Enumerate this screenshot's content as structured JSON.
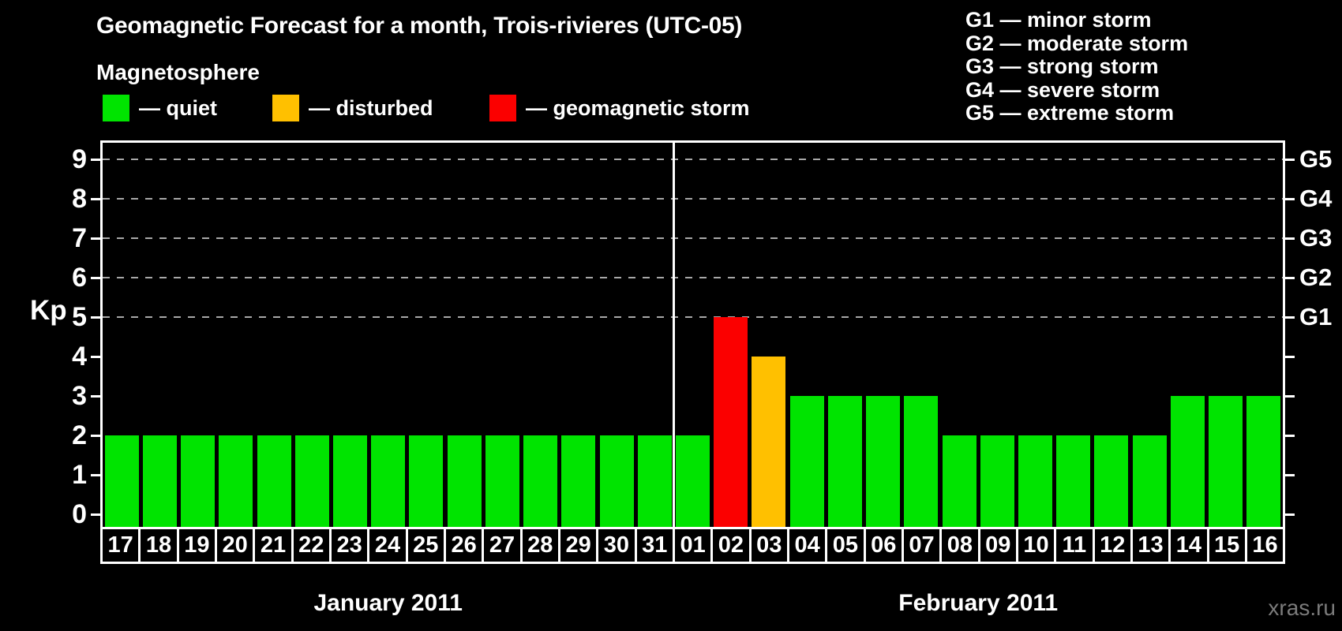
{
  "title": "Geomagnetic Forecast for a month, Trois-rivieres (UTC-05)",
  "legend": {
    "heading": "Magnetosphere",
    "items": [
      {
        "key": "quiet",
        "label": "— quiet",
        "color": "#00e400"
      },
      {
        "key": "disturbed",
        "label": "— disturbed",
        "color": "#ffc000"
      },
      {
        "key": "storm",
        "label": "— geomagnetic storm",
        "color": "#fb0000"
      }
    ]
  },
  "g_legend": [
    "G1 — minor storm",
    "G2 — moderate storm",
    "G3 — strong storm",
    "G4 — severe storm",
    "G5 — extreme storm"
  ],
  "watermark": "xras.ru",
  "chart_data": {
    "type": "bar",
    "ylabel": "Kp",
    "ylim": [
      0,
      9
    ],
    "y_ticks": [
      "0",
      "1",
      "2",
      "3",
      "4",
      "5",
      "6",
      "7",
      "8",
      "9"
    ],
    "grid_levels": [
      5,
      6,
      7,
      8,
      9
    ],
    "grid_style": "dashed",
    "right_axis_labels": [
      {
        "label": "G1",
        "kp": 5
      },
      {
        "label": "G2",
        "kp": 6
      },
      {
        "label": "G3",
        "kp": 7
      },
      {
        "label": "G4",
        "kp": 8
      },
      {
        "label": "G5",
        "kp": 9
      }
    ],
    "colors": {
      "quiet": "#00e400",
      "disturbed": "#ffc000",
      "storm": "#fb0000"
    },
    "months": [
      {
        "label": "January 2011",
        "days": 15
      },
      {
        "label": "February 2011",
        "days": 16
      }
    ],
    "days": [
      {
        "day": "17",
        "kp": 2,
        "status": "quiet"
      },
      {
        "day": "18",
        "kp": 2,
        "status": "quiet"
      },
      {
        "day": "19",
        "kp": 2,
        "status": "quiet"
      },
      {
        "day": "20",
        "kp": 2,
        "status": "quiet"
      },
      {
        "day": "21",
        "kp": 2,
        "status": "quiet"
      },
      {
        "day": "22",
        "kp": 2,
        "status": "quiet"
      },
      {
        "day": "23",
        "kp": 2,
        "status": "quiet"
      },
      {
        "day": "24",
        "kp": 2,
        "status": "quiet"
      },
      {
        "day": "25",
        "kp": 2,
        "status": "quiet"
      },
      {
        "day": "26",
        "kp": 2,
        "status": "quiet"
      },
      {
        "day": "27",
        "kp": 2,
        "status": "quiet"
      },
      {
        "day": "28",
        "kp": 2,
        "status": "quiet"
      },
      {
        "day": "29",
        "kp": 2,
        "status": "quiet"
      },
      {
        "day": "30",
        "kp": 2,
        "status": "quiet"
      },
      {
        "day": "31",
        "kp": 2,
        "status": "quiet"
      },
      {
        "day": "01",
        "kp": 2,
        "status": "quiet"
      },
      {
        "day": "02",
        "kp": 5,
        "status": "storm"
      },
      {
        "day": "03",
        "kp": 4,
        "status": "disturbed"
      },
      {
        "day": "04",
        "kp": 3,
        "status": "quiet"
      },
      {
        "day": "05",
        "kp": 3,
        "status": "quiet"
      },
      {
        "day": "06",
        "kp": 3,
        "status": "quiet"
      },
      {
        "day": "07",
        "kp": 3,
        "status": "quiet"
      },
      {
        "day": "08",
        "kp": 2,
        "status": "quiet"
      },
      {
        "day": "09",
        "kp": 2,
        "status": "quiet"
      },
      {
        "day": "10",
        "kp": 2,
        "status": "quiet"
      },
      {
        "day": "11",
        "kp": 2,
        "status": "quiet"
      },
      {
        "day": "12",
        "kp": 2,
        "status": "quiet"
      },
      {
        "day": "13",
        "kp": 2,
        "status": "quiet"
      },
      {
        "day": "14",
        "kp": 3,
        "status": "quiet"
      },
      {
        "day": "15",
        "kp": 3,
        "status": "quiet"
      },
      {
        "day": "16",
        "kp": 3,
        "status": "quiet"
      }
    ]
  }
}
